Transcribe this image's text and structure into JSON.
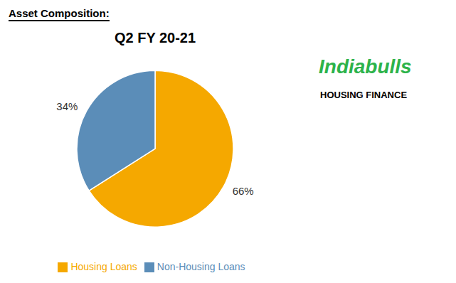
{
  "chart_data": {
    "type": "pie",
    "title": "Q2 FY 20-21",
    "annotations": [
      {
        "text": "Asset Composition:",
        "color": "#000000"
      },
      {
        "text": "Indiabulls",
        "color": "#2DB34A"
      },
      {
        "text": "HOUSING FINANCE",
        "color": "#000000"
      }
    ],
    "categories": [
      "Housing Loans",
      "Non-Housing Loans"
    ],
    "values": [
      66,
      34
    ],
    "value_labels": [
      "66%",
      "34%"
    ],
    "colors": [
      "#F5A800",
      "#5B8DB8"
    ],
    "data_labels": true,
    "legend": "bottom"
  }
}
